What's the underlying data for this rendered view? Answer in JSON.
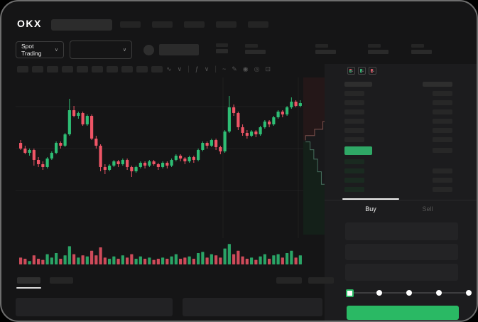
{
  "header": {
    "logo_text": "OKX",
    "search": {
      "placeholder": ""
    },
    "nav_placeholder_count": 5
  },
  "market_bar": {
    "pair_selector": {
      "label": "Spot Trading",
      "chevron_glyph": "∨"
    },
    "secondary_selector": {
      "value": "",
      "chevron_glyph": "∨"
    },
    "stat_placeholder_count": 4
  },
  "chart_toolbar": {
    "interval_placeholder_count": 10,
    "icons": [
      {
        "name": "chart-type-icon",
        "glyph": "∿"
      },
      {
        "name": "chevron-down-icon",
        "glyph": "∨"
      },
      {
        "name": "divider",
        "glyph": "|"
      },
      {
        "name": "indicators-icon",
        "glyph": "ƒ"
      },
      {
        "name": "chevron-down-icon",
        "glyph": "∨"
      },
      {
        "name": "divider",
        "glyph": "|"
      },
      {
        "name": "line-style-icon",
        "glyph": "~"
      },
      {
        "name": "draw-icon",
        "glyph": "✎"
      },
      {
        "name": "camera-icon",
        "glyph": "◉"
      },
      {
        "name": "settings-icon",
        "glyph": "◎"
      },
      {
        "name": "fullscreen-icon",
        "glyph": "⊡"
      }
    ]
  },
  "order_book": {
    "view_toggles": [
      {
        "name": "orderbook-both-icon",
        "top": "#ee5566",
        "bottom": "#2ebd74"
      },
      {
        "name": "orderbook-bids-icon",
        "top": "#2ebd74",
        "bottom": "#2ebd74"
      },
      {
        "name": "orderbook-asks-icon",
        "top": "#ee5566",
        "bottom": "#ee5566"
      }
    ],
    "last_price_color": "#2fa866",
    "ask_row_color": "#272727",
    "bid_row_color": "#1a2a20",
    "amount_block_color": "#272727",
    "rows": [
      {
        "side": "ask",
        "right": true
      },
      {
        "side": "ask",
        "right": true
      },
      {
        "side": "ask",
        "right": true
      },
      {
        "side": "ask",
        "right": true
      },
      {
        "side": "ask",
        "right": true
      },
      {
        "side": "ask",
        "right": true
      },
      {
        "side": "price",
        "right": true
      },
      {
        "side": "bid",
        "right": false
      },
      {
        "side": "bid",
        "right": true
      },
      {
        "side": "bid",
        "right": true
      },
      {
        "side": "bid",
        "right": true
      }
    ]
  },
  "trade_panel": {
    "tabs": [
      {
        "label": "Buy",
        "active": true
      },
      {
        "label": "Sell",
        "active": false
      }
    ],
    "field_count": 3,
    "slider": {
      "stops": 5,
      "active_stop": 0
    },
    "submit_button": {
      "label": "",
      "color": "#2ab964"
    }
  },
  "bottom_bar": {
    "tab_placeholder_count": 2,
    "active_tab_index": 0,
    "right_placeholder_count": 2,
    "panel_count": 2
  },
  "chart_data": {
    "type": "candlestick",
    "title": "",
    "axes_visible": false,
    "price_scale": [
      0,
      100
    ],
    "grid": {
      "horizontal": 3,
      "vertical": 2
    },
    "colors": {
      "up": "#2ebd74",
      "down": "#ee5566"
    },
    "candles": [
      [
        57,
        59,
        52,
        53
      ],
      [
        53,
        55,
        49,
        50
      ],
      [
        50,
        53,
        48,
        52
      ],
      [
        52,
        53,
        41,
        45
      ],
      [
        45,
        47,
        40,
        42
      ],
      [
        42,
        44,
        38,
        40
      ],
      [
        40,
        47,
        39,
        46
      ],
      [
        46,
        51,
        45,
        50
      ],
      [
        50,
        58,
        49,
        57
      ],
      [
        57,
        58,
        53,
        55
      ],
      [
        55,
        64,
        54,
        63
      ],
      [
        63,
        88,
        62,
        80
      ],
      [
        80,
        83,
        75,
        76
      ],
      [
        76,
        79,
        74,
        78
      ],
      [
        78,
        79,
        69,
        70
      ],
      [
        70,
        77,
        69,
        76
      ],
      [
        76,
        77,
        59,
        60
      ],
      [
        60,
        62,
        53,
        55
      ],
      [
        55,
        56,
        37,
        40
      ],
      [
        40,
        42,
        35,
        38
      ],
      [
        38,
        42,
        37,
        41
      ],
      [
        41,
        45,
        40,
        44
      ],
      [
        44,
        45,
        40,
        42
      ],
      [
        42,
        46,
        41,
        45
      ],
      [
        45,
        46,
        38,
        40
      ],
      [
        40,
        41,
        33,
        37
      ],
      [
        37,
        41,
        36,
        40
      ],
      [
        40,
        44,
        39,
        43
      ],
      [
        43,
        44,
        39,
        41
      ],
      [
        41,
        45,
        40,
        44
      ],
      [
        44,
        45,
        41,
        42
      ],
      [
        42,
        43,
        38,
        40
      ],
      [
        40,
        44,
        39,
        43
      ],
      [
        43,
        44,
        39,
        41
      ],
      [
        41,
        46,
        40,
        45
      ],
      [
        45,
        49,
        44,
        48
      ],
      [
        48,
        49,
        44,
        46
      ],
      [
        46,
        47,
        42,
        44
      ],
      [
        44,
        48,
        43,
        47
      ],
      [
        47,
        48,
        43,
        45
      ],
      [
        45,
        53,
        44,
        52
      ],
      [
        52,
        58,
        51,
        57
      ],
      [
        57,
        58,
        53,
        55
      ],
      [
        55,
        60,
        54,
        59
      ],
      [
        59,
        60,
        52,
        54
      ],
      [
        54,
        55,
        49,
        51
      ],
      [
        51,
        66,
        50,
        65
      ],
      [
        65,
        90,
        64,
        82
      ],
      [
        82,
        84,
        76,
        78
      ],
      [
        78,
        79,
        66,
        68
      ],
      [
        68,
        70,
        62,
        64
      ],
      [
        64,
        66,
        60,
        62
      ],
      [
        62,
        66,
        61,
        65
      ],
      [
        65,
        66,
        61,
        63
      ],
      [
        63,
        69,
        62,
        68
      ],
      [
        68,
        73,
        67,
        72
      ],
      [
        72,
        73,
        68,
        70
      ],
      [
        70,
        76,
        69,
        75
      ],
      [
        75,
        80,
        74,
        79
      ],
      [
        79,
        80,
        75,
        77
      ],
      [
        77,
        83,
        76,
        82
      ],
      [
        82,
        89,
        81,
        86
      ],
      [
        86,
        87,
        82,
        83
      ],
      [
        83,
        87,
        82,
        85
      ]
    ],
    "volume": [
      6,
      5,
      3,
      8,
      5,
      4,
      9,
      6,
      10,
      5,
      8,
      16,
      9,
      6,
      8,
      7,
      12,
      8,
      15,
      6,
      5,
      7,
      5,
      8,
      6,
      9,
      5,
      7,
      5,
      6,
      4,
      5,
      6,
      5,
      7,
      9,
      5,
      6,
      7,
      5,
      10,
      11,
      6,
      9,
      8,
      6,
      14,
      18,
      9,
      12,
      7,
      5,
      6,
      4,
      7,
      9,
      5,
      8,
      9,
      6,
      10,
      12,
      6,
      8
    ],
    "depth": {
      "ask_curve": [
        [
          0.9,
          0.0
        ],
        [
          0.86,
          0.05
        ],
        [
          0.83,
          0.1
        ],
        [
          0.76,
          0.16
        ],
        [
          0.7,
          0.22
        ],
        [
          0.65,
          0.28
        ],
        [
          0.52,
          0.33
        ],
        [
          0.3,
          0.37
        ],
        [
          0.06,
          0.4
        ]
      ],
      "bid_curve": [
        [
          0.06,
          0.41
        ],
        [
          0.18,
          0.46
        ],
        [
          0.28,
          0.52
        ],
        [
          0.38,
          0.6
        ],
        [
          0.48,
          0.68
        ],
        [
          0.6,
          0.76
        ],
        [
          0.72,
          0.84
        ],
        [
          0.82,
          0.92
        ],
        [
          0.92,
          1.0
        ]
      ],
      "ask_fill": "#241718",
      "bid_fill": "#142019",
      "ask_line": "#7d524e",
      "bid_line": "#47705f"
    }
  }
}
